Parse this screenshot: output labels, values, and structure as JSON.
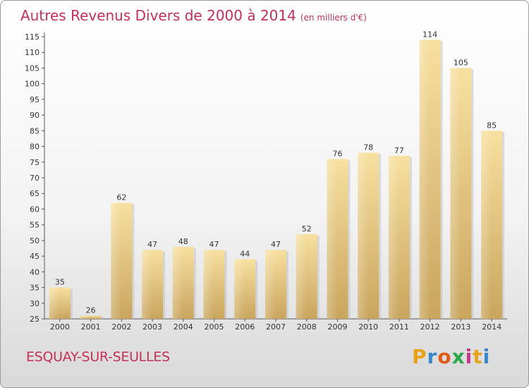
{
  "chart_data": {
    "type": "bar",
    "title": "Autres Revenus Divers de 2000 à 2014",
    "subtitle": "(en milliers d'€)",
    "categories": [
      "2000",
      "2001",
      "2002",
      "2003",
      "2004",
      "2005",
      "2006",
      "2007",
      "2008",
      "2009",
      "2010",
      "2011",
      "2012",
      "2013",
      "2014"
    ],
    "values": [
      35,
      26,
      62,
      47,
      48,
      47,
      44,
      47,
      52,
      76,
      78,
      77,
      114,
      105,
      85
    ],
    "ylim": [
      25,
      115
    ],
    "yticks": [
      25,
      30,
      35,
      40,
      45,
      50,
      55,
      60,
      65,
      70,
      75,
      80,
      85,
      90,
      95,
      100,
      105,
      110,
      115
    ],
    "grid": false,
    "bar_color": "#e8c97a"
  },
  "footer": {
    "commune": "ESQUAY-SUR-SEULLES",
    "logo_letters": [
      "P",
      "r",
      "o",
      "x",
      "i",
      "t",
      "i"
    ],
    "logo_colors": [
      "#e8a21a",
      "#3a86c8",
      "#e05a1c",
      "#2aa84a",
      "#c23a8a",
      "#e8a21a",
      "#3a86c8"
    ]
  }
}
